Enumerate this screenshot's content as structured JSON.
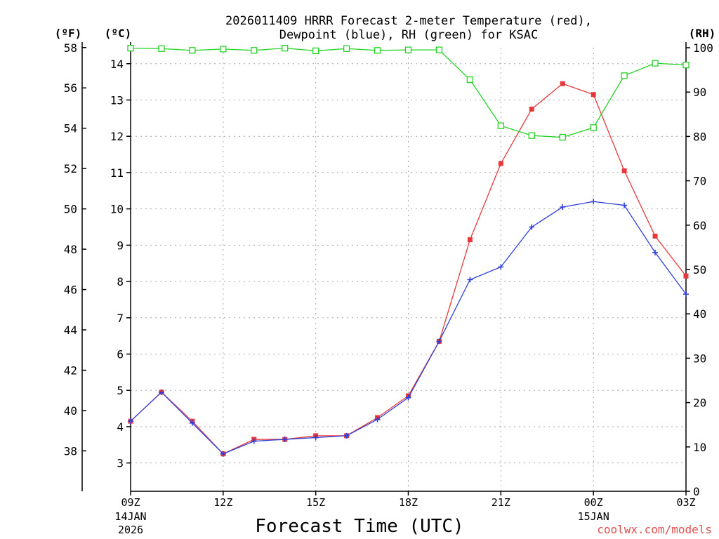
{
  "chart_data": {
    "type": "line",
    "title_line1": "2026011409 HRRR Forecast 2-meter Temperature (red),",
    "title_line2": "Dewpoint (blue), RH (green) for KSAC",
    "xlabel": "Forecast Time (UTC)",
    "unit_f": "(ºF)",
    "unit_c": "(ºC)",
    "unit_rh": "(RH)",
    "watermark": "coolwx.com/models",
    "x": [
      0,
      1,
      2,
      3,
      4,
      5,
      6,
      7,
      8,
      9,
      10,
      11,
      12,
      13,
      14,
      15,
      16,
      17,
      18
    ],
    "x_ticks": [
      {
        "x": 0,
        "label": "09Z",
        "date1": "14JAN",
        "date2": "2026"
      },
      {
        "x": 3,
        "label": "12Z",
        "date1": "",
        "date2": ""
      },
      {
        "x": 6,
        "label": "15Z",
        "date1": "",
        "date2": ""
      },
      {
        "x": 9,
        "label": "18Z",
        "date1": "",
        "date2": ""
      },
      {
        "x": 12,
        "label": "21Z",
        "date1": "",
        "date2": ""
      },
      {
        "x": 15,
        "label": "00Z",
        "date1": "15JAN",
        "date2": ""
      },
      {
        "x": 18,
        "label": "03Z",
        "date1": "",
        "date2": ""
      }
    ],
    "y_c_ticks": [
      "3",
      "4",
      "5",
      "6",
      "7",
      "8",
      "9",
      "10",
      "11",
      "12",
      "13",
      "14"
    ],
    "y_f_ticks": [
      "38",
      "40",
      "42",
      "44",
      "46",
      "48",
      "50",
      "52",
      "54",
      "56",
      "58"
    ],
    "y_rh_ticks": [
      "0",
      "10",
      "20",
      "30",
      "40",
      "50",
      "60",
      "70",
      "80",
      "90",
      "100"
    ],
    "ylim_c": [
      2.22,
      14.44
    ],
    "ylim_rh": [
      0,
      100
    ],
    "grid": true,
    "series": [
      {
        "name": "Temperature",
        "axis": "c",
        "color": "#e8383b",
        "marker": "filled-square",
        "values": [
          4.15,
          4.95,
          4.15,
          3.25,
          3.65,
          3.65,
          3.75,
          3.75,
          4.25,
          4.85,
          6.35,
          9.15,
          11.25,
          12.75,
          13.45,
          13.15,
          11.05,
          9.25,
          8.15
        ]
      },
      {
        "name": "Dewpoint",
        "axis": "c",
        "color": "#2f3fd8",
        "marker": "plus",
        "values": [
          4.15,
          4.95,
          4.1,
          3.25,
          3.6,
          3.65,
          3.7,
          3.75,
          4.2,
          4.8,
          6.35,
          8.05,
          8.4,
          9.5,
          10.05,
          10.2,
          10.1,
          8.8,
          7.65
        ]
      },
      {
        "name": "RH",
        "axis": "rh",
        "color": "#22d322",
        "marker": "open-square",
        "values": [
          99.9,
          99.8,
          99.4,
          99.7,
          99.4,
          99.9,
          99.3,
          99.8,
          99.4,
          99.5,
          99.5,
          92.8,
          82.4,
          80.2,
          79.8,
          82.0,
          93.7,
          96.5,
          96.1
        ]
      }
    ]
  }
}
